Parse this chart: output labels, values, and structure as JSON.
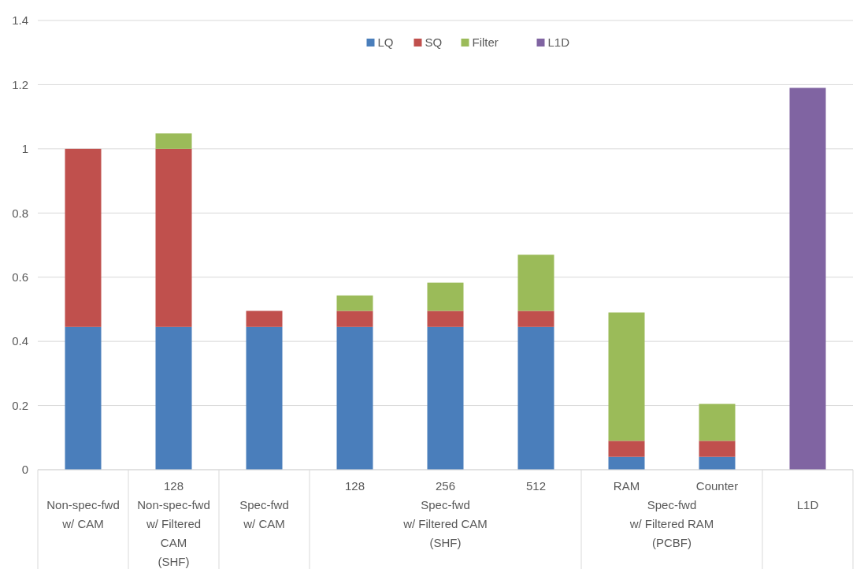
{
  "chart_data": {
    "type": "bar",
    "stacked": true,
    "categories": [
      null,
      "128",
      null,
      "128",
      "256",
      "512",
      "RAM",
      "Counter",
      null
    ],
    "series": [
      {
        "name": "LQ",
        "color": "#4a7ebb",
        "values": [
          0.445,
          0.445,
          0.445,
          0.445,
          0.445,
          0.445,
          0.04,
          0.04,
          null
        ]
      },
      {
        "name": "SQ",
        "color": "#c0504d",
        "values": [
          0.555,
          0.555,
          0.05,
          0.05,
          0.05,
          0.05,
          0.05,
          0.05,
          null
        ]
      },
      {
        "name": "Filter",
        "color": "#9bbb59",
        "values": [
          null,
          0.048,
          null,
          0.048,
          0.088,
          0.175,
          0.4,
          0.115,
          null
        ]
      },
      {
        "name": "L1D",
        "color": "#8064a2",
        "values": [
          null,
          null,
          null,
          null,
          null,
          null,
          null,
          null,
          1.19
        ]
      }
    ],
    "annotations": [
      "Non-spec-fwd\nw/ CAM",
      "Non-spec-fwd\nw/ Filtered\nCAM\n(SHF)",
      "Spec-fwd\nw/ CAM",
      "Spec-fwd\nw/ Filtered CAM\n(SHF)",
      "Spec-fwd\nw/ Filtered RAM\n(PCBF)",
      "L1D"
    ],
    "ylim": [
      0,
      1.4
    ],
    "yticks": [
      0,
      0.2,
      0.4,
      0.6,
      0.8,
      1,
      1.2,
      1.4
    ],
    "grid": "y",
    "legend": "top"
  }
}
